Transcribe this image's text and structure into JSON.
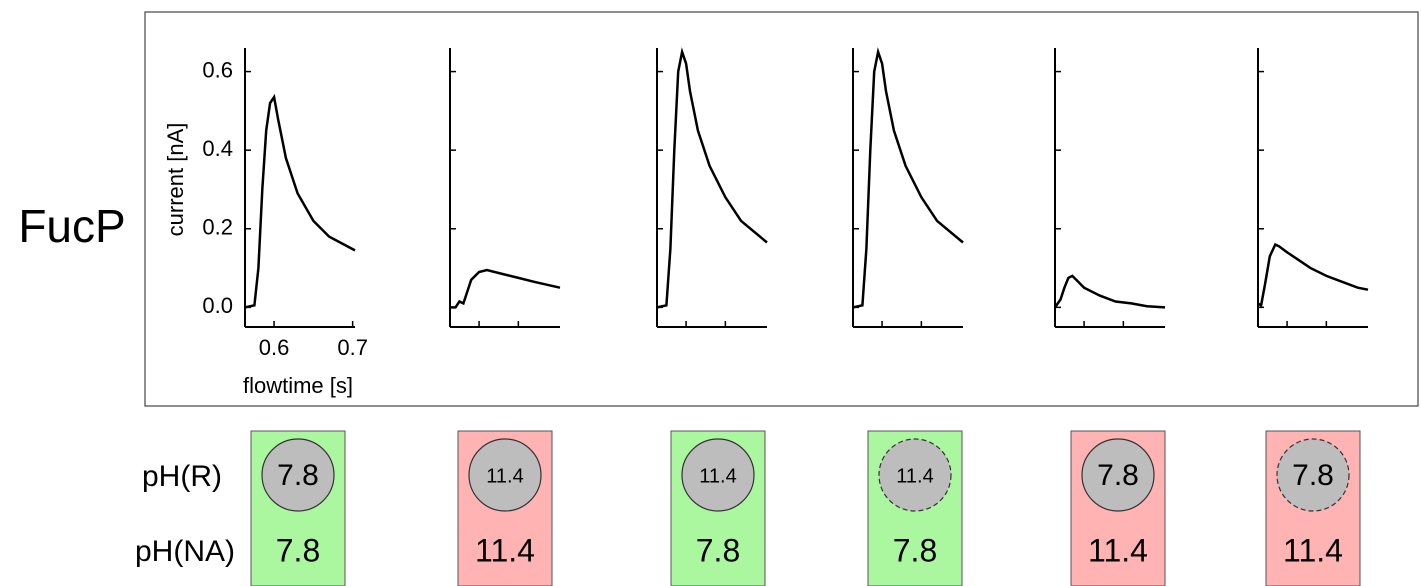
{
  "label": "FucP",
  "row_labels": [
    "pH(R)",
    "pH(NA)"
  ],
  "conditions": [
    {
      "R": "7.8",
      "NA": "7.8",
      "color": "#aaf7a0",
      "dashed": false
    },
    {
      "R": "11.4",
      "NA": "11.4",
      "color": "#ffb3b3",
      "dashed": false
    },
    {
      "R": "11.4",
      "NA": "7.8",
      "color": "#aaf7a0",
      "dashed": false
    },
    {
      "R": "11.4",
      "NA": "7.8",
      "color": "#aaf7a0",
      "dashed": true
    },
    {
      "R": "7.8",
      "NA": "11.4",
      "color": "#ffb3b3",
      "dashed": false
    },
    {
      "R": "7.8",
      "NA": "11.4",
      "color": "#ffb3b3",
      "dashed": true
    }
  ],
  "chart_data": [
    {
      "type": "line",
      "ylabel": "current [nA]",
      "xlabel": "flowtime [s]",
      "tick_labels": true,
      "xlim": [
        0.563,
        0.703
      ],
      "ylim": [
        -0.05,
        0.66
      ],
      "xticks": [
        0.6,
        0.7
      ],
      "yticks": [
        {
          "value": 0,
          "label": "0.0"
        },
        0.2,
        0.4,
        0.6
      ],
      "x": [
        0.563,
        0.575,
        0.58,
        0.585,
        0.59,
        0.595,
        0.6,
        0.605,
        0.615,
        0.63,
        0.65,
        0.67,
        0.703
      ],
      "values": [
        0,
        0.005,
        0.1,
        0.3,
        0.45,
        0.52,
        0.535,
        0.48,
        0.38,
        0.29,
        0.22,
        0.18,
        0.145
      ]
    },
    {
      "type": "line",
      "tick_labels": false,
      "xlim": [
        0.563,
        0.703
      ],
      "ylim": [
        -0.05,
        0.66
      ],
      "xticks": [
        0.6,
        0.65
      ],
      "yticks": [
        0,
        0.2,
        0.4,
        0.6
      ],
      "x": [
        0.563,
        0.57,
        0.575,
        0.58,
        0.585,
        0.59,
        0.6,
        0.61,
        0.63,
        0.65,
        0.67,
        0.703
      ],
      "values": [
        0,
        0.0,
        0.015,
        0.01,
        0.04,
        0.07,
        0.09,
        0.095,
        0.085,
        0.075,
        0.065,
        0.05
      ]
    },
    {
      "type": "line",
      "tick_labels": false,
      "xlim": [
        0.563,
        0.703
      ],
      "ylim": [
        -0.05,
        0.66
      ],
      "xticks": [
        0.6,
        0.65
      ],
      "yticks": [
        0,
        0.2,
        0.4,
        0.6
      ],
      "x": [
        0.563,
        0.575,
        0.58,
        0.585,
        0.59,
        0.595,
        0.6,
        0.605,
        0.615,
        0.63,
        0.65,
        0.67,
        0.703
      ],
      "values": [
        0,
        0.005,
        0.15,
        0.4,
        0.6,
        0.65,
        0.62,
        0.55,
        0.45,
        0.36,
        0.28,
        0.22,
        0.165
      ]
    },
    {
      "type": "line",
      "tick_labels": false,
      "xlim": [
        0.563,
        0.703
      ],
      "ylim": [
        -0.05,
        0.66
      ],
      "xticks": [
        0.6,
        0.65
      ],
      "yticks": [
        0,
        0.2,
        0.4,
        0.6
      ],
      "x": [
        0.563,
        0.575,
        0.58,
        0.585,
        0.59,
        0.595,
        0.6,
        0.605,
        0.615,
        0.63,
        0.65,
        0.67,
        0.703
      ],
      "values": [
        0,
        0.005,
        0.15,
        0.4,
        0.6,
        0.65,
        0.62,
        0.55,
        0.45,
        0.36,
        0.28,
        0.22,
        0.165
      ]
    },
    {
      "type": "line",
      "tick_labels": false,
      "xlim": [
        0.563,
        0.703
      ],
      "ylim": [
        -0.05,
        0.66
      ],
      "xticks": [
        0.6,
        0.65
      ],
      "yticks": [
        0,
        0.2,
        0.4,
        0.6
      ],
      "x": [
        0.563,
        0.57,
        0.575,
        0.58,
        0.585,
        0.59,
        0.6,
        0.62,
        0.64,
        0.66,
        0.68,
        0.703
      ],
      "values": [
        0,
        0.02,
        0.05,
        0.075,
        0.08,
        0.07,
        0.05,
        0.03,
        0.015,
        0.01,
        0.003,
        0.0
      ]
    },
    {
      "type": "line",
      "tick_labels": false,
      "xlim": [
        0.563,
        0.703
      ],
      "ylim": [
        -0.05,
        0.66
      ],
      "xticks": [
        0.6,
        0.65
      ],
      "yticks": [
        0,
        0.2,
        0.4,
        0.6
      ],
      "x": [
        0.563,
        0.567,
        0.572,
        0.578,
        0.585,
        0.59,
        0.6,
        0.615,
        0.63,
        0.65,
        0.67,
        0.69,
        0.703
      ],
      "values": [
        0.01,
        0.005,
        0.06,
        0.13,
        0.16,
        0.155,
        0.14,
        0.12,
        0.1,
        0.08,
        0.065,
        0.05,
        0.045
      ]
    }
  ]
}
